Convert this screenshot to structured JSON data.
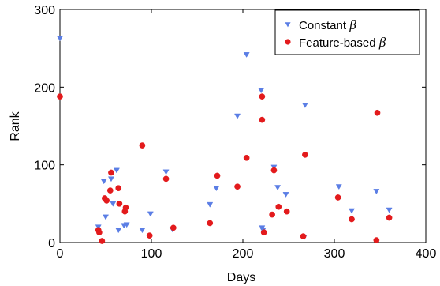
{
  "chart_data": {
    "type": "scatter",
    "title": "",
    "xlabel": "Days",
    "ylabel": "Rank",
    "xlim": [
      0,
      400
    ],
    "ylim": [
      0,
      300
    ],
    "xticks": [
      0,
      100,
      200,
      300,
      400
    ],
    "yticks": [
      0,
      100,
      200,
      300
    ],
    "grid": false,
    "legend": {
      "position": "top-right",
      "entries": [
        {
          "text": "Constant ",
          "symbol": "β",
          "marker": "triangle-down",
          "color": "#5b7ee5"
        },
        {
          "text": "Feature-based ",
          "symbol": "β",
          "marker": "circle",
          "color": "#e31a1c"
        }
      ]
    },
    "series": [
      {
        "name": "Constant β",
        "color": "#5b7ee5",
        "marker": "triangle-down",
        "points": [
          [
            0,
            263
          ],
          [
            42,
            20
          ],
          [
            48,
            79
          ],
          [
            50,
            33
          ],
          [
            56,
            82
          ],
          [
            58,
            50
          ],
          [
            62,
            93
          ],
          [
            64,
            16
          ],
          [
            70,
            22
          ],
          [
            73,
            23
          ],
          [
            90,
            16
          ],
          [
            99,
            37
          ],
          [
            116,
            91
          ],
          [
            123,
            17
          ],
          [
            164,
            49
          ],
          [
            171,
            70
          ],
          [
            194,
            163
          ],
          [
            204,
            242
          ],
          [
            220,
            196
          ],
          [
            221,
            19
          ],
          [
            222,
            16
          ],
          [
            234,
            97
          ],
          [
            238,
            71
          ],
          [
            247,
            62
          ],
          [
            267,
            7
          ],
          [
            268,
            177
          ],
          [
            305,
            72
          ],
          [
            319,
            41
          ],
          [
            346,
            66
          ],
          [
            360,
            42
          ]
        ]
      },
      {
        "name": "Feature-based β",
        "color": "#e31a1c",
        "marker": "circle",
        "points": [
          [
            0,
            188
          ],
          [
            42,
            16
          ],
          [
            43,
            13
          ],
          [
            46,
            2
          ],
          [
            49,
            57
          ],
          [
            51,
            54
          ],
          [
            55,
            67
          ],
          [
            56,
            90
          ],
          [
            64,
            70
          ],
          [
            65,
            50
          ],
          [
            71,
            40
          ],
          [
            72,
            45
          ],
          [
            90,
            125
          ],
          [
            98,
            9
          ],
          [
            116,
            82
          ],
          [
            124,
            19
          ],
          [
            164,
            25
          ],
          [
            172,
            86
          ],
          [
            194,
            72
          ],
          [
            204,
            109
          ],
          [
            221,
            188
          ],
          [
            221,
            158
          ],
          [
            223,
            13
          ],
          [
            232,
            36
          ],
          [
            234,
            93
          ],
          [
            239,
            46
          ],
          [
            248,
            40
          ],
          [
            266,
            8
          ],
          [
            268,
            113
          ],
          [
            304,
            58
          ],
          [
            319,
            30
          ],
          [
            346,
            3
          ],
          [
            347,
            167
          ],
          [
            360,
            32
          ]
        ]
      }
    ]
  }
}
